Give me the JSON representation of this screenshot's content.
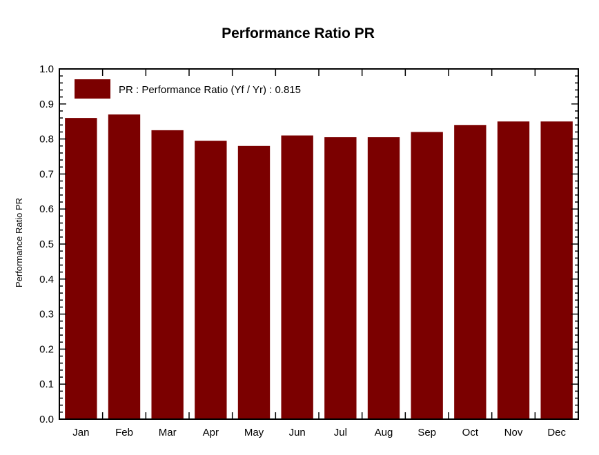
{
  "chart_data": {
    "type": "bar",
    "title": "Performance  Ratio  PR",
    "xlabel": "",
    "ylabel": "Performance  Ratio  PR",
    "categories": [
      "Jan",
      "Feb",
      "Mar",
      "Apr",
      "May",
      "Jun",
      "Jul",
      "Aug",
      "Sep",
      "Oct",
      "Nov",
      "Dec"
    ],
    "series": [
      {
        "name": "PR : Performance Ratio (Yf / Yr) :  0.815",
        "values": [
          0.86,
          0.87,
          0.825,
          0.795,
          0.78,
          0.81,
          0.805,
          0.805,
          0.82,
          0.84,
          0.85,
          0.85
        ],
        "color": "#7b0000"
      }
    ],
    "ylim": [
      0,
      1.0
    ],
    "yticks": [
      "0.0",
      "0.1",
      "0.2",
      "0.3",
      "0.4",
      "0.5",
      "0.6",
      "0.7",
      "0.8",
      "0.9",
      "1.0"
    ],
    "grid": false,
    "legend_position": "top-left"
  }
}
